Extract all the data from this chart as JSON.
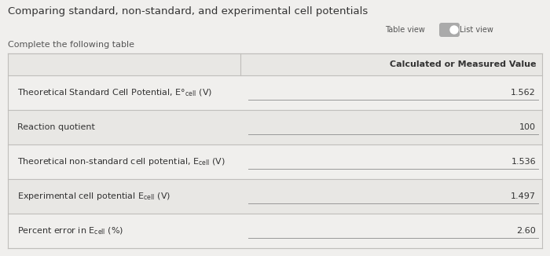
{
  "title": "Comparing standard, non-standard, and experimental cell potentials",
  "subtitle": "Complete the following table",
  "toggle_label1": "Table view",
  "toggle_label2": "List view",
  "col_header": "Calculated or Measured Value",
  "rows": [
    {
      "label": "Theoretical Standard Cell Potential, E°$_\\mathregular{cell}$ (V)",
      "value": "1.562"
    },
    {
      "label": "Reaction quotient",
      "value": "100"
    },
    {
      "label": "Theoretical non-standard cell potential, E$_\\mathregular{cell}$ (V)",
      "value": "1.536"
    },
    {
      "label": "Experimental cell potential E$_\\mathregular{cell}$ (V)",
      "value": "1.497"
    },
    {
      "label": "Percent error in E$_\\mathregular{cell}$ (%)",
      "value": "2.60"
    }
  ],
  "fig_bg": "#f0efed",
  "table_bg": "#e8e7e4",
  "row_bg_odd": "#e8e7e4",
  "row_bg_even": "#f0efed",
  "border_color": "#c0bebb",
  "text_color": "#333333",
  "header_text_color": "#555555",
  "title_fontsize": 9.5,
  "subtitle_fontsize": 8,
  "label_fontsize": 8,
  "value_fontsize": 8,
  "header_fontsize": 8,
  "col_split": 0.435
}
